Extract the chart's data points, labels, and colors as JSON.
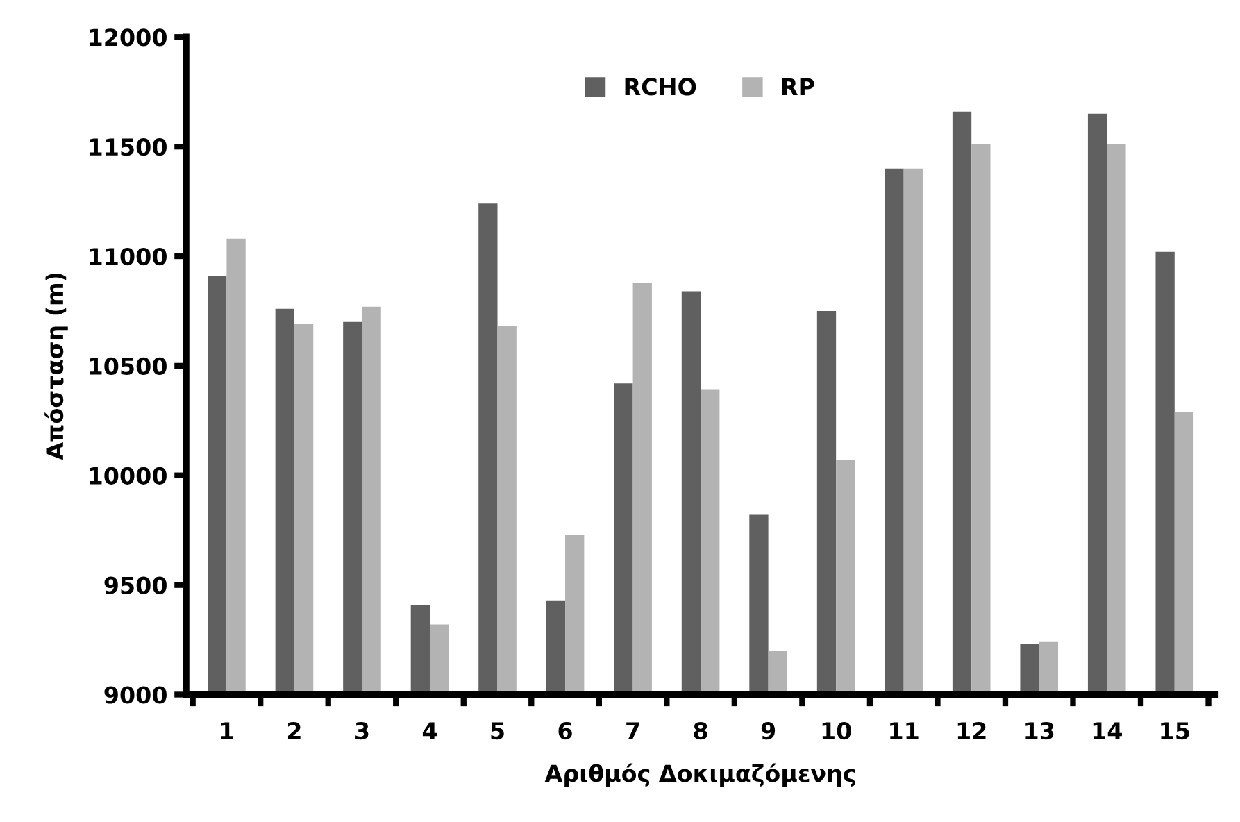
{
  "chart_data": {
    "type": "bar",
    "xlabel": "Αριθμός Δοκιμαζόμενης",
    "ylabel": "Απόσταση (m)",
    "categories": [
      "1",
      "2",
      "3",
      "4",
      "5",
      "6",
      "7",
      "8",
      "9",
      "10",
      "11",
      "12",
      "13",
      "14",
      "15"
    ],
    "series": [
      {
        "name": "RCHO",
        "color": "#606060",
        "values": [
          10910,
          10760,
          10700,
          9410,
          11240,
          9430,
          10420,
          10840,
          9820,
          10750,
          11400,
          11660,
          9230,
          11650,
          11020
        ]
      },
      {
        "name": "RP",
        "color": "#b3b3b3",
        "values": [
          11080,
          10690,
          10770,
          9320,
          10680,
          9730,
          10880,
          10390,
          9200,
          10070,
          11400,
          11510,
          9240,
          11510,
          10290
        ]
      }
    ],
    "ylim": [
      9000,
      12000
    ],
    "yticks": [
      9000,
      9500,
      10000,
      10500,
      11000,
      11500,
      12000
    ],
    "grid": false,
    "legend": "top"
  }
}
